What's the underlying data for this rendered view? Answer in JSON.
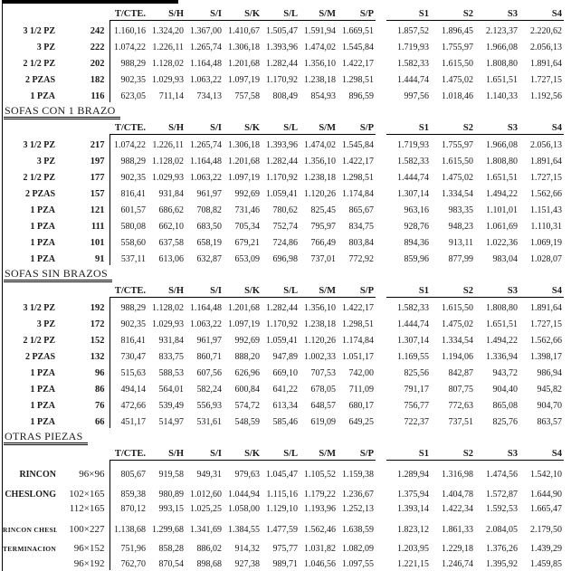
{
  "page": {
    "background": "#ffffff",
    "text_color": "#1a1a1a",
    "rule_color": "#000000"
  },
  "table": {
    "columns": [
      "T/CTE.",
      "S/H",
      "S/I",
      "S/K",
      "S/L",
      "S/M",
      "S/P",
      "S1",
      "S2",
      "S3",
      "S4"
    ],
    "sections": [
      {
        "title": "",
        "rows": [
          {
            "label": "3 1/2 PZ",
            "qty": "242",
            "values": [
              "1.160,16",
              "1.324,20",
              "1.367,00",
              "1.410,67",
              "1.505,47",
              "1.591,94",
              "1.669,51",
              "1.857,52",
              "1.896,45",
              "2.123,37",
              "2.220,62"
            ]
          },
          {
            "label": "3 PZ",
            "qty": "222",
            "values": [
              "1.074,22",
              "1.226,11",
              "1.265,74",
              "1.306,18",
              "1.393,96",
              "1.474,02",
              "1.545,84",
              "1.719,93",
              "1.755,97",
              "1.966,08",
              "2.056,13"
            ]
          },
          {
            "label": "2 1/2 PZ",
            "qty": "202",
            "values": [
              "988,29",
              "1.128,02",
              "1.164,48",
              "1.201,68",
              "1.282,44",
              "1.356,10",
              "1.422,17",
              "1.582,33",
              "1.615,50",
              "1.808,80",
              "1.891,64"
            ]
          },
          {
            "label": "2 PZAS",
            "qty": "182",
            "values": [
              "902,35",
              "1.029,93",
              "1.063,22",
              "1.097,19",
              "1.170,92",
              "1.238,18",
              "1.298,51",
              "1.444,74",
              "1.475,02",
              "1.651,51",
              "1.727,15"
            ]
          },
          {
            "label": "1 PZA",
            "qty": "116",
            "values": [
              "623,05",
              "711,14",
              "734,13",
              "757,58",
              "808,49",
              "854,93",
              "896,59",
              "997,56",
              "1.018,46",
              "1.140,33",
              "1.192,56"
            ]
          }
        ]
      },
      {
        "title": "SOFAS CON 1 BRAZO",
        "rows": [
          {
            "label": "3 1/2 PZ",
            "qty": "217",
            "values": [
              "1.074,22",
              "1.226,11",
              "1.265,74",
              "1.306,18",
              "1.393,96",
              "1.474,02",
              "1.545,84",
              "1.719,93",
              "1.755,97",
              "1.966,08",
              "2.056,13"
            ]
          },
          {
            "label": "3 PZ",
            "qty": "197",
            "values": [
              "988,29",
              "1.128,02",
              "1.164,48",
              "1.201,68",
              "1.282,44",
              "1.356,10",
              "1.422,17",
              "1.582,33",
              "1.615,50",
              "1.808,80",
              "1.891,64"
            ]
          },
          {
            "label": "2 1/2 PZ",
            "qty": "177",
            "values": [
              "902,35",
              "1.029,93",
              "1.063,22",
              "1.097,19",
              "1.170,92",
              "1.238,18",
              "1.298,51",
              "1.444,74",
              "1.475,02",
              "1.651,51",
              "1.727,15"
            ]
          },
          {
            "label": "2 PZAS",
            "qty": "157",
            "values": [
              "816,41",
              "931,84",
              "961,97",
              "992,69",
              "1.059,41",
              "1.120,26",
              "1.174,84",
              "1.307,14",
              "1.334,54",
              "1.494,22",
              "1.562,66"
            ]
          },
          {
            "label": "1 PZA",
            "qty": "121",
            "values": [
              "601,57",
              "686,62",
              "708,82",
              "731,46",
              "780,62",
              "825,45",
              "865,67",
              "963,16",
              "983,35",
              "1.101,01",
              "1.151,43"
            ]
          },
          {
            "label": "1 PZA",
            "qty": "111",
            "values": [
              "580,08",
              "662,10",
              "683,50",
              "705,34",
              "752,74",
              "795,97",
              "834,75",
              "928,76",
              "948,23",
              "1.061,69",
              "1.110,31"
            ]
          },
          {
            "label": "1 PZA",
            "qty": "101",
            "values": [
              "558,60",
              "637,58",
              "658,19",
              "679,21",
              "724,86",
              "766,49",
              "803,84",
              "894,36",
              "913,11",
              "1.022,36",
              "1.069,19"
            ]
          },
          {
            "label": "1 PZA",
            "qty": "91",
            "values": [
              "537,11",
              "613,06",
              "632,87",
              "653,09",
              "696,98",
              "737,01",
              "772,92",
              "859,96",
              "877,99",
              "983,04",
              "1.028,07"
            ]
          }
        ]
      },
      {
        "title": "SOFAS SIN BRAZOS",
        "rows": [
          {
            "label": "3 1/2 PZ",
            "qty": "192",
            "values": [
              "988,29",
              "1.128,02",
              "1.164,48",
              "1.201,68",
              "1.282,44",
              "1.356,10",
              "1.422,17",
              "1.582,33",
              "1.615,50",
              "1.808,80",
              "1.891,64"
            ]
          },
          {
            "label": "3 PZ",
            "qty": "172",
            "values": [
              "902,35",
              "1.029,93",
              "1.063,22",
              "1.097,19",
              "1.170,92",
              "1.238,18",
              "1.298,51",
              "1.444,74",
              "1.475,02",
              "1.651,51",
              "1.727,15"
            ]
          },
          {
            "label": "2 1/2 PZ",
            "qty": "152",
            "values": [
              "816,41",
              "931,84",
              "961,97",
              "992,69",
              "1.059,41",
              "1.120,26",
              "1.174,84",
              "1.307,14",
              "1.334,54",
              "1.494,22",
              "1.562,66"
            ]
          },
          {
            "label": "2 PZAS",
            "qty": "132",
            "values": [
              "730,47",
              "833,75",
              "860,71",
              "888,20",
              "947,89",
              "1.002,33",
              "1.051,17",
              "1.169,55",
              "1.194,06",
              "1.336,94",
              "1.398,17"
            ]
          },
          {
            "label": "1 PZA",
            "qty": "96",
            "values": [
              "515,63",
              "588,53",
              "607,56",
              "626,96",
              "669,10",
              "707,53",
              "742,00",
              "825,56",
              "842,87",
              "943,72",
              "986,94"
            ]
          },
          {
            "label": "1 PZA",
            "qty": "86",
            "values": [
              "494,14",
              "564,01",
              "582,24",
              "600,84",
              "641,22",
              "678,05",
              "711,09",
              "791,17",
              "807,75",
              "904,40",
              "945,82"
            ]
          },
          {
            "label": "1 PZA",
            "qty": "76",
            "values": [
              "472,66",
              "539,49",
              "556,93",
              "574,72",
              "613,34",
              "648,57",
              "680,17",
              "756,77",
              "772,63",
              "865,08",
              "904,70"
            ]
          },
          {
            "label": "1 PZA",
            "qty": "66",
            "values": [
              "451,17",
              "514,97",
              "531,61",
              "548,59",
              "585,46",
              "619,09",
              "649,25",
              "722,37",
              "737,51",
              "825,76",
              "863,57"
            ]
          }
        ]
      },
      {
        "title": "OTRAS PIEZAS",
        "rows": [
          {
            "label": "RINCON",
            "qty": "96×96",
            "values": [
              "805,67",
              "919,58",
              "949,31",
              "979,63",
              "1.045,47",
              "1.105,52",
              "1.159,38",
              "1.289,94",
              "1.316,98",
              "1.474,56",
              "1.542,10"
            ]
          },
          {
            "label": "CHESLONG",
            "qty": "102×165",
            "values": [
              "859,38",
              "980,89",
              "1.012,60",
              "1.044,94",
              "1.115,16",
              "1.179,22",
              "1.236,67",
              "1.375,94",
              "1.404,78",
              "1.572,87",
              "1.644,90"
            ]
          },
          {
            "label": "",
            "qty": "112×165",
            "values": [
              "870,12",
              "993,15",
              "1.025,25",
              "1.058,00",
              "1.129,10",
              "1.193,96",
              "1.252,13",
              "1.393,14",
              "1.422,34",
              "1.592,53",
              "1.665,47"
            ]
          },
          {
            "label": "RINCON CHESL.",
            "qty": "100×227",
            "small_label": true,
            "values": [
              "1.138,68",
              "1.299,68",
              "1.341,69",
              "1.384,55",
              "1.477,59",
              "1.562,46",
              "1.638,59",
              "1.823,12",
              "1.861,33",
              "2.084,05",
              "2.179,50"
            ]
          },
          {
            "label": "TERMINACION",
            "qty": "96×152",
            "small_label": true,
            "values": [
              "751,96",
              "858,28",
              "886,02",
              "914,32",
              "975,77",
              "1.031,82",
              "1.082,09",
              "1.203,95",
              "1.229,18",
              "1.376,26",
              "1.439,29"
            ]
          },
          {
            "label": "",
            "qty": "96×192",
            "values": [
              "762,70",
              "870,54",
              "898,68",
              "927,38",
              "989,71",
              "1.046,56",
              "1.097,55",
              "1.221,15",
              "1.246,74",
              "1.395,92",
              "1.459,85"
            ]
          }
        ]
      }
    ]
  }
}
